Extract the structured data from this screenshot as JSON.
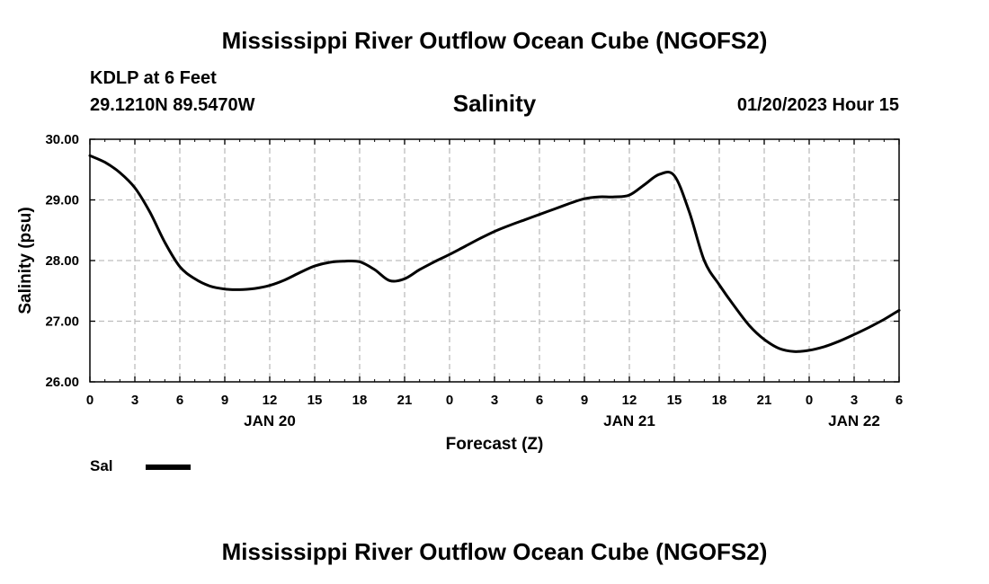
{
  "header": {
    "title": "Mississippi River Outflow Ocean Cube (NGOFS2)",
    "station": "KDLP at 6 Feet",
    "coordinates": "29.1210N  89.5470W",
    "subtitle": "Salinity",
    "datetime": "01/20/2023 Hour 15"
  },
  "footer": {
    "title": "Mississippi River Outflow Ocean Cube (NGOFS2)"
  },
  "legend": {
    "label": "Sal",
    "color": "#000000"
  },
  "chart_data": {
    "type": "line",
    "title": "Salinity",
    "xlabel": "Forecast (Z)",
    "ylabel": "Salinity (psu)",
    "xlim": [
      0,
      54
    ],
    "ylim": [
      26,
      30
    ],
    "grid": true,
    "x_ticks": [
      0,
      3,
      6,
      9,
      12,
      15,
      18,
      21,
      24,
      27,
      30,
      33,
      36,
      39,
      42,
      45,
      48,
      51,
      54
    ],
    "x_tick_labels": [
      "0",
      "3",
      "6",
      "9",
      "12",
      "15",
      "18",
      "21",
      "0",
      "3",
      "6",
      "9",
      "12",
      "15",
      "18",
      "21",
      "0",
      "3",
      "6"
    ],
    "y_ticks": [
      26,
      27,
      28,
      29,
      30
    ],
    "y_tick_labels": [
      "26.00",
      "27.00",
      "28.00",
      "29.00",
      "30.00"
    ],
    "date_labels": [
      {
        "x": 12,
        "label": "JAN 20"
      },
      {
        "x": 36,
        "label": "JAN 21"
      },
      {
        "x": 51,
        "label": "JAN 22"
      }
    ],
    "series": [
      {
        "name": "Sal",
        "color": "#000000",
        "x": [
          0,
          1,
          2,
          3,
          4,
          5,
          6,
          7,
          8,
          9,
          10,
          11,
          12,
          13,
          14,
          15,
          16,
          17,
          18,
          19,
          20,
          21,
          22,
          23,
          24,
          25,
          26,
          27,
          28,
          29,
          30,
          31,
          32,
          33,
          34,
          35,
          36,
          37,
          38,
          39,
          40,
          41,
          42,
          43,
          44,
          45,
          46,
          47,
          48,
          49,
          50,
          51,
          52,
          53,
          54
        ],
        "y": [
          29.73,
          29.62,
          29.45,
          29.2,
          28.8,
          28.3,
          27.9,
          27.7,
          27.58,
          27.53,
          27.52,
          27.54,
          27.59,
          27.68,
          27.8,
          27.91,
          27.97,
          27.99,
          27.98,
          27.85,
          27.67,
          27.7,
          27.85,
          27.98,
          28.1,
          28.23,
          28.36,
          28.48,
          28.58,
          28.67,
          28.76,
          28.85,
          28.94,
          29.02,
          29.05,
          29.05,
          29.08,
          29.25,
          29.42,
          29.4,
          28.8,
          28.0,
          27.6,
          27.25,
          26.93,
          26.7,
          26.55,
          26.5,
          26.52,
          26.58,
          26.67,
          26.78,
          26.9,
          27.03,
          27.18
        ]
      }
    ]
  }
}
